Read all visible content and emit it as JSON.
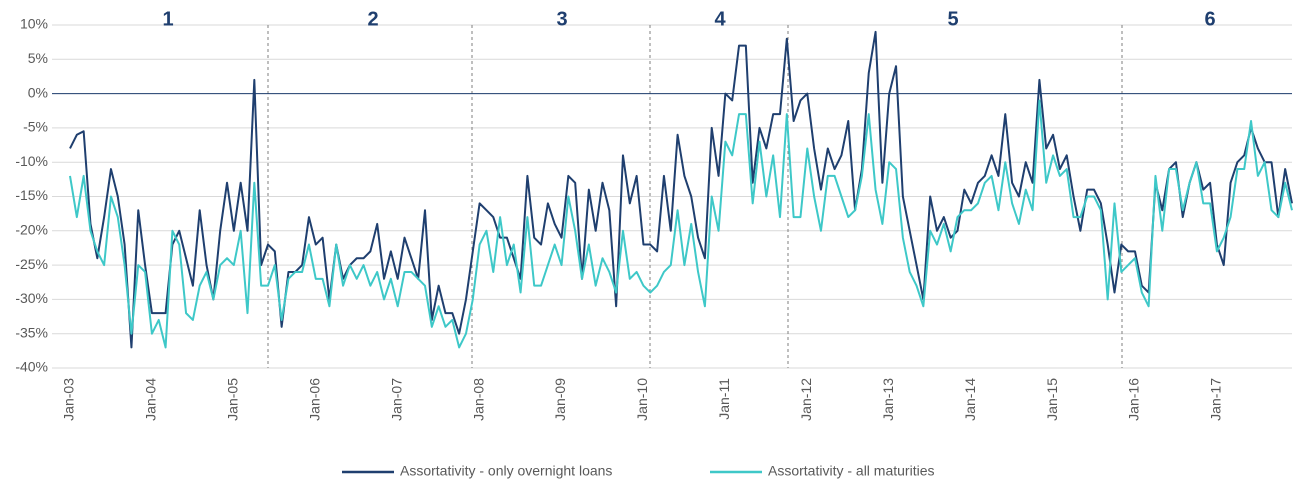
{
  "chart_data": {
    "type": "line",
    "annotations": [
      "1",
      "2",
      "3",
      "4",
      "5",
      "6"
    ],
    "categories": [
      "Jan-03",
      null,
      null,
      null,
      null,
      null,
      null,
      null,
      null,
      null,
      null,
      null,
      "Jan-04",
      null,
      null,
      null,
      null,
      null,
      null,
      null,
      null,
      null,
      null,
      null,
      "Jan-05",
      null,
      null,
      null,
      null,
      null,
      null,
      null,
      null,
      null,
      null,
      null,
      "Jan-06",
      null,
      null,
      null,
      null,
      null,
      null,
      null,
      null,
      null,
      null,
      null,
      "Jan-07",
      null,
      null,
      null,
      null,
      null,
      null,
      null,
      null,
      null,
      null,
      null,
      "Jan-08",
      null,
      null,
      null,
      null,
      null,
      null,
      null,
      null,
      null,
      null,
      null,
      "Jan-09",
      null,
      null,
      null,
      null,
      null,
      null,
      null,
      null,
      null,
      null,
      null,
      "Jan-10",
      null,
      null,
      null,
      null,
      null,
      null,
      null,
      null,
      null,
      null,
      null,
      "Jan-11",
      null,
      null,
      null,
      null,
      null,
      null,
      null,
      null,
      null,
      null,
      null,
      "Jan-12",
      null,
      null,
      null,
      null,
      null,
      null,
      null,
      null,
      null,
      null,
      null,
      "Jan-13",
      null,
      null,
      null,
      null,
      null,
      null,
      null,
      null,
      null,
      null,
      null,
      "Jan-14",
      null,
      null,
      null,
      null,
      null,
      null,
      null,
      null,
      null,
      null,
      null,
      "Jan-15",
      null,
      null,
      null,
      null,
      null,
      null,
      null,
      null,
      null,
      null,
      null,
      "Jan-16",
      null,
      null,
      null,
      null,
      null,
      null,
      null,
      null,
      null,
      null,
      null,
      "Jan-17",
      null,
      null,
      null,
      null,
      null,
      null,
      null,
      null,
      null,
      null,
      null
    ],
    "series": [
      {
        "name": "Assortativity - only overnight loans",
        "color": "#1f3f6f",
        "values": [
          -8,
          -6,
          -5.5,
          -19,
          -24,
          -18,
          -11,
          -15,
          -22,
          -37,
          -17,
          -25,
          -32,
          -32,
          -32,
          -22,
          -20,
          -24,
          -28,
          -17,
          -25,
          -30,
          -20,
          -13,
          -20,
          -13,
          -20,
          2,
          -25,
          -22,
          -23,
          -34,
          -26,
          -26,
          -25,
          -18,
          -22,
          -21,
          -30,
          -22,
          -27,
          -25,
          -24,
          -24,
          -23,
          -19,
          -27,
          -23,
          -27,
          -21,
          -24,
          -27,
          -17,
          -33,
          -28,
          -32,
          -32,
          -35,
          -30,
          -23,
          -16,
          -17,
          -18,
          -21,
          -21,
          -24,
          -27,
          -12,
          -21,
          -22,
          -16,
          -19,
          -21,
          -12,
          -13,
          -27,
          -14,
          -20,
          -13,
          -17,
          -31,
          -9,
          -16,
          -12,
          -22,
          -22,
          -23,
          -12,
          -20,
          -6,
          -12,
          -15,
          -21,
          -24,
          -5,
          -12,
          0,
          -1,
          7,
          7,
          -13,
          -5,
          -8,
          -3,
          -3,
          8,
          -4,
          -1,
          0,
          -8,
          -14,
          -8,
          -11,
          -9,
          -4,
          -17,
          -11,
          3,
          9,
          -13,
          0,
          4,
          -15,
          -20,
          -25,
          -30,
          -15,
          -20,
          -18,
          -21,
          -20,
          -14,
          -16,
          -13,
          -12,
          -9,
          -12,
          -3,
          -13,
          -15,
          -10,
          -13,
          2,
          -8,
          -6,
          -11,
          -9,
          -15,
          -20,
          -14,
          -14,
          -16,
          -22,
          -29,
          -22,
          -23,
          -23,
          -28,
          -29,
          -13,
          -17,
          -11,
          -10,
          -18,
          -13,
          -10,
          -14,
          -13,
          -22,
          -25,
          -13,
          -10,
          -9,
          -5,
          -8,
          -10,
          -10,
          -18,
          -11,
          -16
        ]
      },
      {
        "name": "Assortativity - all maturities",
        "color": "#3ec8c8",
        "values": [
          -12,
          -18,
          -12,
          -20,
          -23,
          -25,
          -15,
          -18,
          -25,
          -35,
          -25,
          -26,
          -35,
          -33,
          -37,
          -20,
          -22,
          -32,
          -33,
          -28,
          -26,
          -30,
          -25,
          -24,
          -25,
          -20,
          -32,
          -13,
          -28,
          -28,
          -25,
          -33,
          -27,
          -26,
          -26,
          -22,
          -27,
          -27,
          -31,
          -22,
          -28,
          -25,
          -27,
          -25,
          -28,
          -26,
          -30,
          -27,
          -31,
          -26,
          -26,
          -27,
          -28,
          -34,
          -31,
          -34,
          -33,
          -37,
          -35,
          -30,
          -22,
          -20,
          -26,
          -18,
          -25,
          -22,
          -29,
          -18,
          -28,
          -28,
          -25,
          -22,
          -25,
          -15,
          -20,
          -27,
          -22,
          -28,
          -24,
          -26,
          -29,
          -20,
          -27,
          -26,
          -28,
          -29,
          -28,
          -26,
          -25,
          -17,
          -25,
          -19,
          -26,
          -31,
          -15,
          -20,
          -7,
          -9,
          -3,
          -3,
          -16,
          -7,
          -15,
          -9,
          -18,
          -3,
          -18,
          -18,
          -8,
          -15,
          -20,
          -12,
          -12,
          -15,
          -18,
          -17,
          -12,
          -3,
          -14,
          -19,
          -10,
          -11,
          -21,
          -26,
          -28,
          -31,
          -20,
          -22,
          -19,
          -23,
          -18,
          -17,
          -17,
          -16,
          -13,
          -12,
          -17,
          -10,
          -16,
          -19,
          -14,
          -17,
          -1,
          -13,
          -9,
          -12,
          -11,
          -18,
          -18,
          -15,
          -15,
          -17,
          -30,
          -16,
          -26,
          -25,
          -24,
          -29,
          -31,
          -12,
          -20,
          -11,
          -11,
          -17,
          -13,
          -10,
          -16,
          -16,
          -23,
          -21,
          -18,
          -11,
          -11,
          -4,
          -12,
          -10,
          -17,
          -18,
          -13,
          -17
        ]
      }
    ],
    "ylim": [
      -40,
      10
    ],
    "yticks": [
      {
        "value": -40,
        "label": "-40%"
      },
      {
        "value": -35,
        "label": "-35%"
      },
      {
        "value": -30,
        "label": "-30%"
      },
      {
        "value": -25,
        "label": "-25%"
      },
      {
        "value": -20,
        "label": "-20%"
      },
      {
        "value": -15,
        "label": "-15%"
      },
      {
        "value": -10,
        "label": "-10%"
      },
      {
        "value": -5,
        "label": "-5%"
      },
      {
        "value": 0,
        "label": "0%"
      },
      {
        "value": 5,
        "label": "5%"
      },
      {
        "value": 10,
        "label": "10%"
      }
    ],
    "grid": true
  }
}
